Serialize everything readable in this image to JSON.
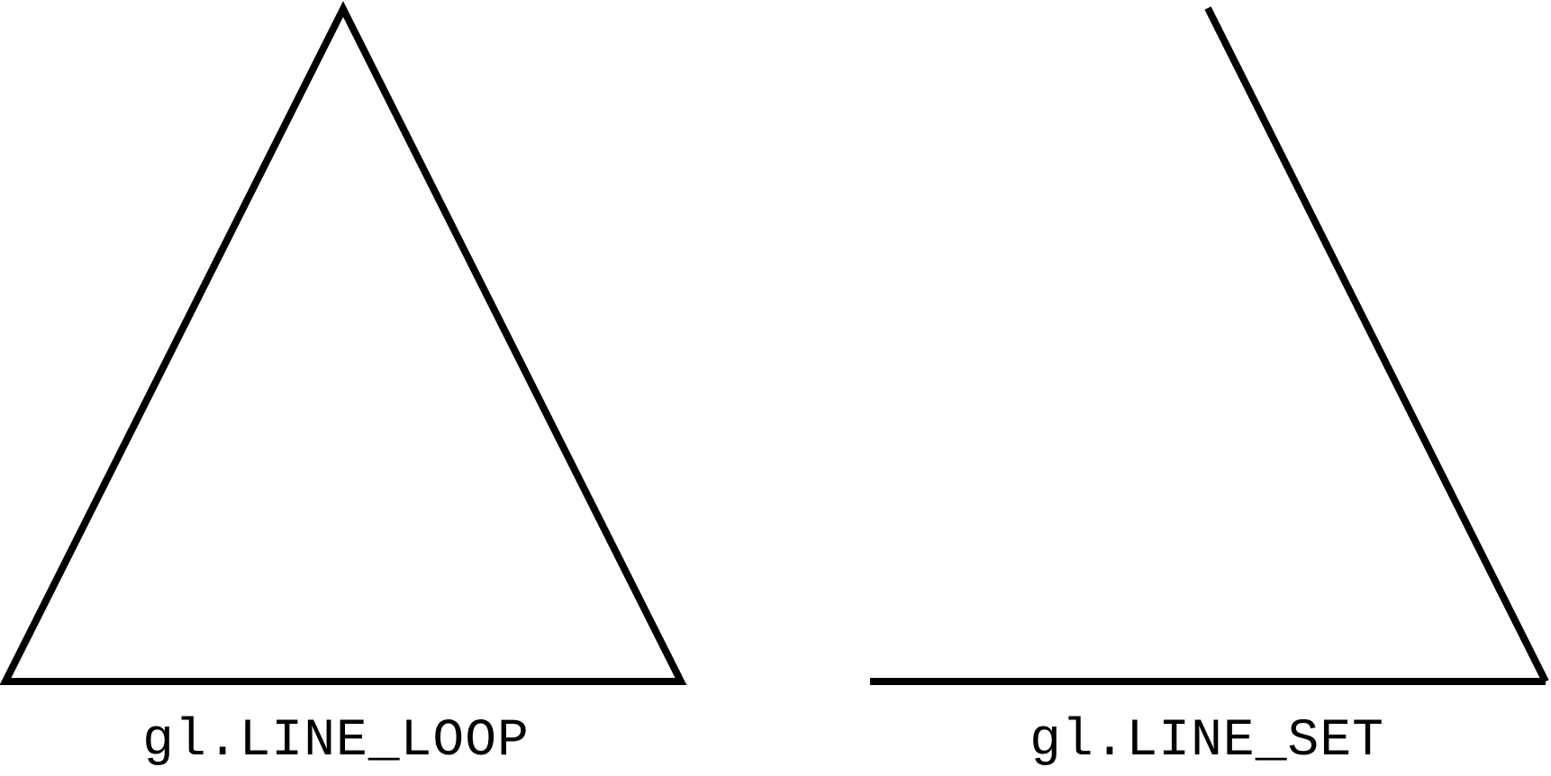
{
  "figures": [
    {
      "label": "gl.LINE_LOOP",
      "closed": true,
      "segments_drawn": 3
    },
    {
      "label": "gl.LINE_SET",
      "closed": false,
      "segments_drawn": 2
    }
  ],
  "colors": {
    "stroke": "#000000",
    "text": "#000000",
    "background": "#ffffff"
  }
}
